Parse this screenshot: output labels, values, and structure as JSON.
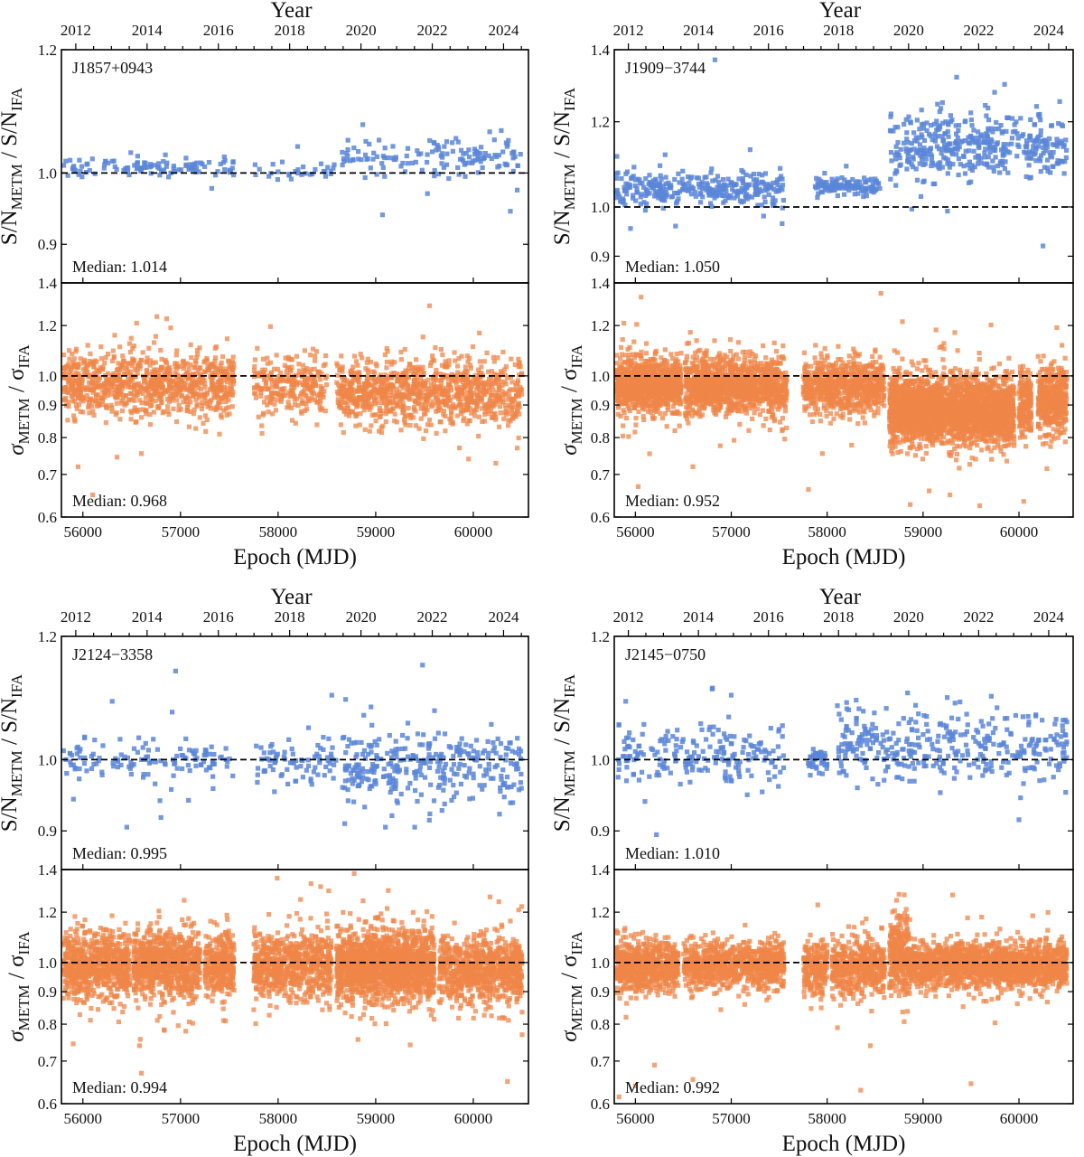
{
  "chart_data": [
    {
      "type": "scatter",
      "pulsar": "J1857+0943",
      "xlabel": "Epoch (MJD)",
      "xlim": [
        55780,
        60565
      ],
      "xticks": [
        "56000",
        "57000",
        "58000",
        "59000",
        "60000"
      ],
      "top_axis": {
        "label": "Year",
        "ticks": [
          "2012",
          "2014",
          "2016",
          "2018",
          "2020",
          "2022",
          "2024"
        ]
      },
      "snr": {
        "ylabel": {
          "a": "S/N",
          "a_sub": "METM",
          "b": " / S/N",
          "b_sub": "IFA"
        },
        "yscale": "log",
        "ylim": [
          0.85,
          1.2
        ],
        "yticks": [
          "0.9",
          "1.0",
          "1.2"
        ],
        "median_label": "Median: 1.014",
        "reference": 1.0,
        "color": "#5a86d8",
        "segments": [
          [
            55800,
            57550,
            110,
            1.008,
            0.006
          ],
          [
            57750,
            58600,
            30,
            1.003,
            0.006
          ],
          [
            58650,
            60500,
            140,
            1.025,
            0.013
          ]
        ],
        "outliers": [
          [
            59070,
            0.94
          ],
          [
            60380,
            0.945
          ],
          [
            59530,
            0.97
          ],
          [
            60450,
            0.975
          ],
          [
            58200,
            1.04
          ],
          [
            59600,
            1.045
          ]
        ]
      },
      "sigma": {
        "ylabel": {
          "a": "σ",
          "a_sub": "METM",
          "b": " / σ",
          "b_sub": "IFA"
        },
        "yscale": "log",
        "ylim": [
          0.6,
          1.4
        ],
        "yticks": [
          "0.6",
          "0.7",
          "0.8",
          "0.9",
          "1.0",
          "1.2",
          "1.4"
        ],
        "median_label": "Median: 0.968",
        "reference": 1.0,
        "color": "#ef8648",
        "segments": [
          [
            55800,
            57550,
            900,
            0.972,
            0.055
          ],
          [
            57750,
            58500,
            260,
            0.965,
            0.055
          ],
          [
            58600,
            60500,
            1000,
            0.945,
            0.055
          ]
        ],
        "outliers": [
          [
            55950,
            0.72
          ],
          [
            56100,
            0.65
          ],
          [
            56350,
            0.745
          ],
          [
            56600,
            0.755
          ],
          [
            56900,
            1.19
          ],
          [
            60450,
            0.77
          ],
          [
            57400,
            0.81
          ]
        ]
      }
    },
    {
      "type": "scatter",
      "pulsar": "J1909−3744",
      "xlabel": "Epoch (MJD)",
      "xlim": [
        55780,
        60565
      ],
      "xticks": [
        "56000",
        "57000",
        "58000",
        "59000",
        "60000"
      ],
      "top_axis": {
        "label": "Year",
        "ticks": [
          "2012",
          "2014",
          "2016",
          "2018",
          "2020",
          "2022",
          "2024"
        ]
      },
      "snr": {
        "ylabel": {
          "a": "S/N",
          "a_sub": "METM",
          "b": " / S/N",
          "b_sub": "IFA"
        },
        "yscale": "log",
        "ylim": [
          0.85,
          1.4
        ],
        "yticks": [
          "0.9",
          "1.0",
          "1.2",
          "1.4"
        ],
        "median_label": "Median: 1.050",
        "reference": 1.0,
        "color": "#5a86d8",
        "segments": [
          [
            55800,
            57550,
            320,
            1.04,
            0.018
          ],
          [
            57850,
            58550,
            120,
            1.045,
            0.009
          ],
          [
            58650,
            60500,
            420,
            1.14,
            0.035
          ]
        ],
        "outliers": [
          [
            56830,
            1.37
          ],
          [
            60250,
            0.92
          ],
          [
            55950,
            0.955
          ],
          [
            57530,
            0.965
          ],
          [
            56420,
            0.96
          ],
          [
            59350,
            1.32
          ],
          [
            59850,
            1.3
          ]
        ]
      },
      "sigma": {
        "ylabel": {
          "a": "σ",
          "a_sub": "METM",
          "b": " / σ",
          "b_sub": "IFA"
        },
        "yscale": "log",
        "ylim": [
          0.6,
          1.4
        ],
        "yticks": [
          "0.6",
          "0.7",
          "0.8",
          "0.9",
          "1.0",
          "1.2",
          "1.4"
        ],
        "median_label": "Median: 0.952",
        "reference": 1.0,
        "color": "#ef8648",
        "segments": [
          [
            55800,
            56480,
            900,
            0.965,
            0.05
          ],
          [
            56520,
            57200,
            900,
            0.97,
            0.05
          ],
          [
            57200,
            57580,
            380,
            0.96,
            0.05
          ],
          [
            57750,
            58600,
            700,
            0.965,
            0.05
          ],
          [
            58650,
            59230,
            1200,
            0.885,
            0.06
          ],
          [
            59250,
            59950,
            1300,
            0.885,
            0.06
          ],
          [
            60000,
            60130,
            200,
            0.9,
            0.06
          ],
          [
            60200,
            60500,
            400,
            0.915,
            0.06
          ]
        ],
        "outliers": [
          [
            56060,
            1.33
          ],
          [
            55880,
            1.21
          ],
          [
            56030,
            0.67
          ],
          [
            59280,
            0.65
          ],
          [
            59590,
            0.625
          ],
          [
            60050,
            0.635
          ],
          [
            57950,
            0.755
          ],
          [
            56600,
            0.72
          ]
        ]
      }
    },
    {
      "type": "scatter",
      "pulsar": "J2124−3358",
      "xlabel": "Epoch (MJD)",
      "xlim": [
        55780,
        60565
      ],
      "xticks": [
        "56000",
        "57000",
        "58000",
        "59000",
        "60000"
      ],
      "top_axis": {
        "label": "Year",
        "ticks": [
          "2012",
          "2014",
          "2016",
          "2018",
          "2020",
          "2022",
          "2024"
        ]
      },
      "snr": {
        "ylabel": {
          "a": "S/N",
          "a_sub": "METM",
          "b": " / S/N",
          "b_sub": "IFA"
        },
        "yscale": "log",
        "ylim": [
          0.85,
          1.2
        ],
        "yticks": [
          "0.9",
          "1.0",
          "1.2"
        ],
        "median_label": "Median: 0.995",
        "reference": 1.0,
        "color": "#5a86d8",
        "segments": [
          [
            55800,
            57550,
            130,
            1.0,
            0.014
          ],
          [
            57750,
            58600,
            80,
            0.995,
            0.018
          ],
          [
            58650,
            60500,
            320,
            0.99,
            0.028
          ]
        ],
        "outliers": [
          [
            56950,
            1.14
          ],
          [
            59480,
            1.15
          ],
          [
            56300,
            1.09
          ],
          [
            56450,
            0.905
          ],
          [
            56800,
            0.918
          ],
          [
            58550,
            1.1
          ],
          [
            59400,
            0.905
          ],
          [
            59100,
            0.905
          ]
        ]
      },
      "sigma": {
        "ylabel": {
          "a": "σ",
          "a_sub": "METM",
          "b": " / σ",
          "b_sub": "IFA"
        },
        "yscale": "log",
        "ylim": [
          0.6,
          1.4
        ],
        "yticks": [
          "0.6",
          "0.7",
          "0.8",
          "0.9",
          "1.0",
          "1.2",
          "1.4"
        ],
        "median_label": "Median: 0.994",
        "reference": 1.0,
        "color": "#ef8648",
        "segments": [
          [
            55800,
            56480,
            700,
            0.99,
            0.06
          ],
          [
            56520,
            57200,
            800,
            0.995,
            0.06
          ],
          [
            57250,
            57550,
            300,
            0.99,
            0.06
          ],
          [
            57750,
            58550,
            700,
            0.99,
            0.06
          ],
          [
            58600,
            59600,
            1500,
            0.985,
            0.065
          ],
          [
            59650,
            60500,
            800,
            0.975,
            0.06
          ]
        ],
        "outliers": [
          [
            58780,
            1.38
          ],
          [
            56600,
            0.67
          ],
          [
            60350,
            0.65
          ],
          [
            56580,
            0.74
          ],
          [
            55900,
            0.745
          ],
          [
            60500,
            0.77
          ]
        ]
      }
    },
    {
      "type": "scatter",
      "pulsar": "J2145−0750",
      "xlabel": "Epoch (MJD)",
      "xlim": [
        55780,
        60565
      ],
      "xticks": [
        "56000",
        "57000",
        "58000",
        "59000",
        "60000"
      ],
      "top_axis": {
        "label": "Year",
        "ticks": [
          "2012",
          "2014",
          "2016",
          "2018",
          "2020",
          "2022",
          "2024"
        ]
      },
      "snr": {
        "ylabel": {
          "a": "S/N",
          "a_sub": "METM",
          "b": " / S/N",
          "b_sub": "IFA"
        },
        "yscale": "log",
        "ylim": [
          0.85,
          1.2
        ],
        "yticks": [
          "0.9",
          "1.0",
          "1.2"
        ],
        "median_label": "Median: 1.010",
        "reference": 1.0,
        "color": "#5a86d8",
        "segments": [
          [
            55800,
            57550,
            200,
            1.008,
            0.022
          ],
          [
            57800,
            58000,
            40,
            1.0,
            0.008
          ],
          [
            58100,
            60500,
            360,
            1.02,
            0.028
          ]
        ],
        "outliers": [
          [
            56220,
            0.895
          ],
          [
            56800,
            1.11
          ],
          [
            57000,
            1.1
          ],
          [
            60000,
            0.915
          ],
          [
            56100,
            0.94
          ],
          [
            55900,
            1.09
          ]
        ]
      },
      "sigma": {
        "ylabel": {
          "a": "σ",
          "a_sub": "METM",
          "b": " / σ",
          "b_sub": "IFA"
        },
        "yscale": "log",
        "ylim": [
          0.6,
          1.4
        ],
        "yticks": [
          "0.6",
          "0.7",
          "0.8",
          "0.9",
          "1.0",
          "1.2",
          "1.4"
        ],
        "median_label": "Median: 0.992",
        "reference": 1.0,
        "color": "#ef8648",
        "segments": [
          [
            55800,
            56450,
            700,
            0.985,
            0.045
          ],
          [
            56500,
            57550,
            900,
            0.99,
            0.04
          ],
          [
            57750,
            58000,
            200,
            0.985,
            0.05
          ],
          [
            58050,
            58600,
            500,
            0.985,
            0.05
          ],
          [
            58650,
            58850,
            300,
            1.03,
            0.07
          ],
          [
            58850,
            60500,
            1700,
            0.99,
            0.04
          ]
        ],
        "outliers": [
          [
            55830,
            0.615
          ],
          [
            56000,
            0.64
          ],
          [
            56200,
            0.69
          ],
          [
            56600,
            0.655
          ],
          [
            58350,
            0.63
          ],
          [
            59500,
            0.645
          ],
          [
            58450,
            0.74
          ],
          [
            58750,
            1.28
          ]
        ]
      }
    }
  ]
}
